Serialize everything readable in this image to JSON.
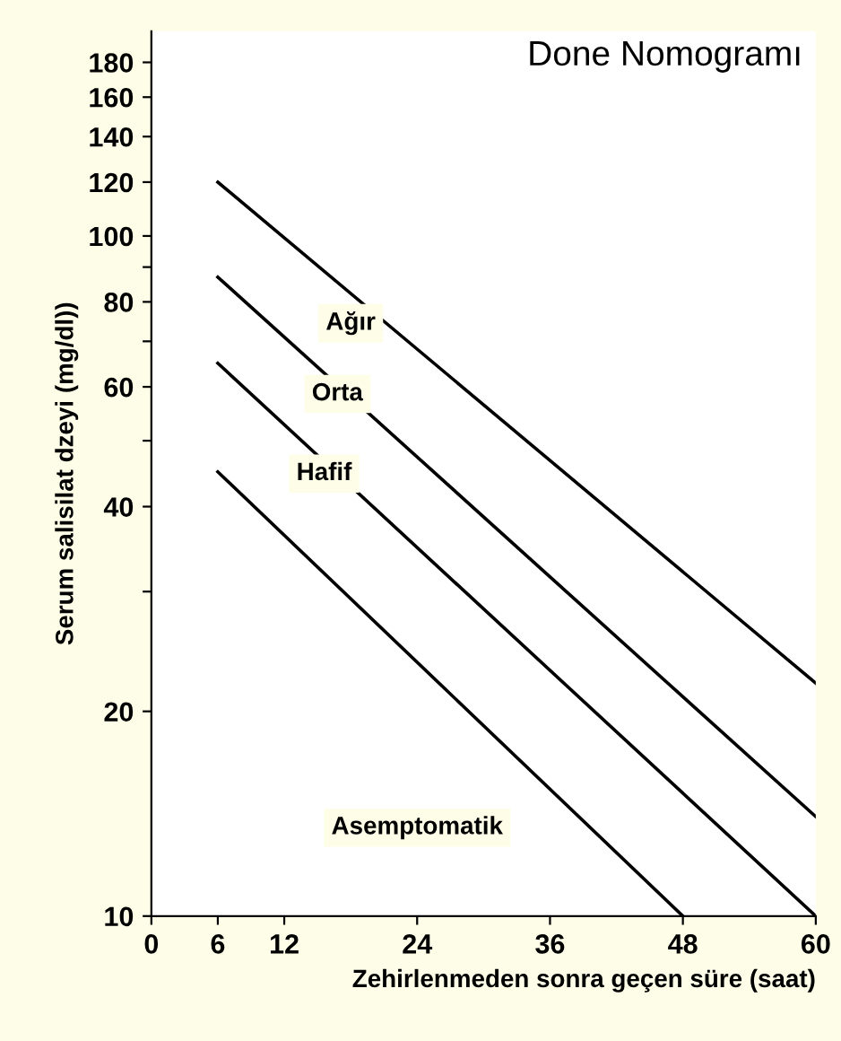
{
  "chart_data": {
    "type": "line",
    "title": "Done Nomogramı",
    "xlabel": "Zehirlenmeden sonra geçen süre (saat)",
    "ylabel": "Serum salisilat dzeyi (mg/dl))",
    "log": "y",
    "xlim": [
      0,
      60
    ],
    "ylim": [
      10,
      200
    ],
    "xticks": [
      0,
      6,
      12,
      24,
      36,
      48,
      60
    ],
    "yticks": [
      10,
      20,
      {
        "value": 30,
        "label": null
      },
      40,
      {
        "value": 50,
        "label": null
      },
      60,
      {
        "value": 70,
        "label": null
      },
      80,
      {
        "value": 90,
        "label": null
      },
      100,
      120,
      140,
      160,
      180
    ],
    "grid": false,
    "legend": false,
    "marker": "none",
    "line_style": "solid",
    "series": [
      {
        "color": "#000000",
        "x": [
          6,
          60
        ],
        "values": [
          120,
          22
        ]
      },
      {
        "color": "#000000",
        "x": [
          6,
          60
        ],
        "values": [
          87,
          14
        ]
      },
      {
        "color": "#000000",
        "x": [
          6,
          60
        ],
        "values": [
          65,
          10
        ]
      },
      {
        "color": "#000000",
        "x": [
          6,
          48
        ],
        "values": [
          45,
          10
        ]
      }
    ],
    "annotations": [
      "Ağır",
      "Orta",
      "Hafif",
      "Asemptomatik"
    ]
  }
}
